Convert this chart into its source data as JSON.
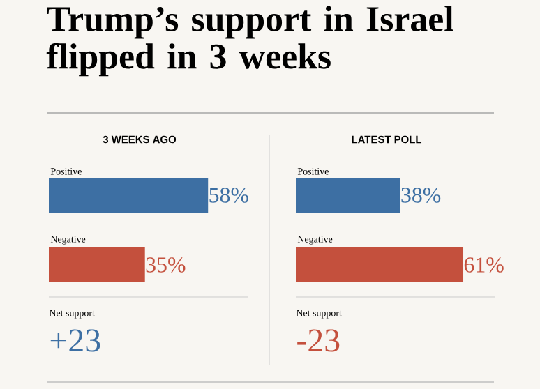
{
  "chart_data": [
    {
      "type": "bar",
      "orientation": "horizontal",
      "title": "Trump’s support in Israel flipped in 3 weeks",
      "subtitle": "3 WEEKS AGO",
      "categories": [
        "Positive",
        "Negative"
      ],
      "values": [
        58,
        35
      ],
      "colors": [
        "#3d6fa3",
        "#c4503d"
      ],
      "value_labels": [
        "58%",
        "35%"
      ],
      "annotations": [
        "Net support",
        "+23"
      ]
    },
    {
      "type": "bar",
      "orientation": "horizontal",
      "subtitle": "LATEST POLL",
      "categories": [
        "Positive",
        "Negative"
      ],
      "values": [
        38,
        61
      ],
      "colors": [
        "#3d6fa3",
        "#c4503d"
      ],
      "value_labels": [
        "38%",
        "61%"
      ],
      "annotations": [
        "Net support",
        "-23"
      ]
    }
  ]
}
